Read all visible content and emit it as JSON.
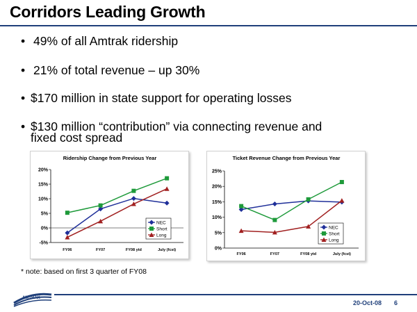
{
  "slide": {
    "title": "Corridors Leading Growth",
    "bullets": [
      {
        "marker": "•",
        "lines": [
          "49% of all Amtrak ridership"
        ]
      },
      {
        "marker": "•",
        "lines": [
          "21% of total revenue – up 30%"
        ]
      },
      {
        "marker": "•",
        "lines": [
          "$170 million in state support for operating losses"
        ]
      },
      {
        "marker": "•",
        "lines": [
          "$130 million “contribution” via connecting revenue and",
          "fixed cost spread"
        ]
      }
    ],
    "note": "* note: based on first 3 quarter of FY08",
    "logo_text": "AMTRAK",
    "footer_date": "20-Oct-08",
    "page_number": "6"
  },
  "colors": {
    "NEC": "#1f2f99",
    "Short": "#1e9a3a",
    "Long": "#a12020",
    "rule": "#1f3f7a"
  },
  "chart_data": [
    {
      "type": "line",
      "title": "Ridership Change from Previous Year",
      "categories": [
        "FY06",
        "FY07",
        "FY08 ytd",
        "July (fcst)"
      ],
      "ylim": [
        -5,
        20
      ],
      "yticks": [
        "-5%",
        "0%",
        "5%",
        "10%",
        "15%",
        "20%"
      ],
      "ytick_values": [
        -5,
        0,
        5,
        10,
        15,
        20
      ],
      "grid": false,
      "legend": "bottom-right",
      "series": [
        {
          "name": "NEC",
          "marker": "diamond",
          "values": [
            -1.7,
            6.5,
            10.1,
            8.5
          ]
        },
        {
          "name": "Short",
          "marker": "square",
          "values": [
            5.2,
            7.7,
            12.7,
            17.0
          ]
        },
        {
          "name": "Long",
          "marker": "triangle",
          "values": [
            -3.2,
            2.3,
            8.2,
            13.4
          ]
        }
      ]
    },
    {
      "type": "line",
      "title": "Ticket Revenue Change from Previous Year",
      "categories": [
        "FY06",
        "FY07",
        "FY08 ytd",
        "July (fcst)"
      ],
      "ylim": [
        0,
        25
      ],
      "yticks": [
        "0%",
        "5%",
        "10%",
        "15%",
        "20%",
        "25%"
      ],
      "ytick_values": [
        0,
        5,
        10,
        15,
        20,
        25
      ],
      "grid": false,
      "legend": "bottom-right",
      "series": [
        {
          "name": "NEC",
          "marker": "diamond",
          "values": [
            12.5,
            14.3,
            15.3,
            14.9
          ]
        },
        {
          "name": "Short",
          "marker": "square",
          "values": [
            13.6,
            9.1,
            15.8,
            21.4
          ]
        },
        {
          "name": "Long",
          "marker": "triangle",
          "values": [
            5.6,
            5.1,
            7.0,
            15.4
          ]
        }
      ]
    }
  ]
}
